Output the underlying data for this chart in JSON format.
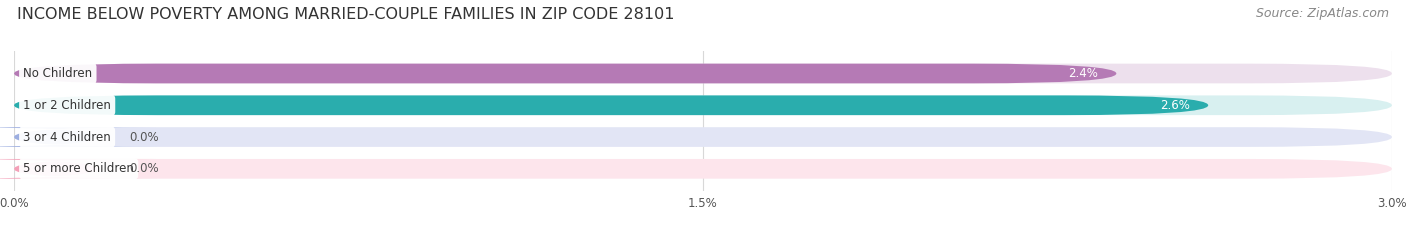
{
  "title": "INCOME BELOW POVERTY AMONG MARRIED-COUPLE FAMILIES IN ZIP CODE 28101",
  "source": "Source: ZipAtlas.com",
  "categories": [
    "No Children",
    "1 or 2 Children",
    "3 or 4 Children",
    "5 or more Children"
  ],
  "values": [
    2.4,
    2.6,
    0.0,
    0.0
  ],
  "bar_colors": [
    "#b57ab5",
    "#2aadad",
    "#9daee0",
    "#f4a0b8"
  ],
  "bar_bg_colors": [
    "#ede0ed",
    "#d8f0f0",
    "#e2e5f5",
    "#fde5ec"
  ],
  "xlim": [
    0,
    3.0
  ],
  "xticks": [
    0.0,
    1.5,
    3.0
  ],
  "xticklabels": [
    "0.0%",
    "1.5%",
    "3.0%"
  ],
  "title_fontsize": 11.5,
  "source_fontsize": 9,
  "bar_height": 0.62,
  "bar_gap": 0.38,
  "figsize": [
    14.06,
    2.33
  ],
  "dpi": 100,
  "bg_color": "#ffffff",
  "label_bg_color": "#ffffff",
  "label_fontsize": 8.5,
  "value_fontsize": 8.5,
  "tick_fontsize": 8.5,
  "grid_color": "#d8d8d8",
  "zero_stub": 0.18
}
